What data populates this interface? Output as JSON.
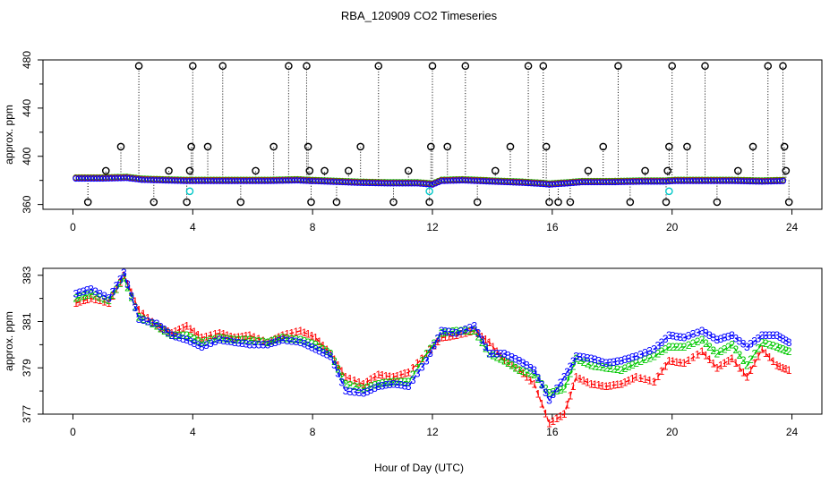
{
  "chart_data": {
    "title": "RBA_120909  CO2 Timeseries",
    "xlabel": "Hour of Day (UTC)",
    "x_ticks": [
      0,
      4,
      8,
      12,
      16,
      20,
      24
    ],
    "xlim": [
      -1,
      25
    ],
    "panels": [
      {
        "type": "scatter",
        "ylabel": "approx. ppm",
        "ylim": [
          356,
          480
        ],
        "y_ticks": [
          360,
          400,
          440,
          480
        ],
        "baseline": {
          "x": [
            0.1,
            1.0,
            1.8,
            2.3,
            3.0,
            3.8,
            4.5,
            5.5,
            6.5,
            7.5,
            7.9,
            8.5,
            9.5,
            10.5,
            11.5,
            12.0,
            12.3,
            13.0,
            14.0,
            15.0,
            15.7,
            15.9,
            16.5,
            17.0,
            18.0,
            19.0,
            19.8,
            20.1,
            21.0,
            22.0,
            23.0,
            23.8
          ],
          "y": [
            382,
            382,
            382.5,
            381,
            380.5,
            380,
            380,
            380,
            380,
            380.5,
            380,
            379.5,
            378.5,
            378,
            378,
            377,
            380,
            380.5,
            379.5,
            378.5,
            377.5,
            377,
            378,
            379,
            379,
            379.5,
            379.5,
            380,
            380,
            380,
            379.5,
            380
          ]
        },
        "series": [
          {
            "marker": "circle",
            "color": "#000000",
            "x": [
              0.5,
              1.1,
              1.6,
              2.2,
              2.7,
              3.2,
              3.8,
              3.9,
              3.95,
              4.0,
              4.5,
              5.0,
              5.6,
              6.1,
              6.7,
              7.2,
              7.8,
              7.85,
              7.9,
              7.95,
              8.4,
              8.8,
              9.2,
              9.6,
              10.2,
              10.7,
              11.2,
              11.9,
              11.95,
              12.0,
              12.5,
              13.1,
              13.5,
              14.1,
              14.6,
              15.2,
              15.7,
              15.8,
              15.9,
              16.2,
              16.6,
              17.2,
              17.7,
              18.2,
              18.6,
              19.1,
              19.8,
              19.85,
              19.9,
              20.0,
              20.5,
              21.1,
              21.5,
              22.2,
              22.7,
              23.2,
              23.7,
              23.75,
              23.8,
              23.9
            ],
            "y": [
              362,
              388,
              408,
              475,
              362,
              388,
              362,
              388,
              408,
              475,
              408,
              475,
              362,
              388,
              408,
              475,
              475,
              408,
              388,
              362,
              388,
              362,
              388,
              408,
              475,
              362,
              388,
              362,
              408,
              475,
              408,
              475,
              362,
              388,
              408,
              475,
              475,
              408,
              362,
              362,
              362,
              388,
              408,
              475,
              362,
              388,
              362,
              388,
              408,
              475,
              408,
              475,
              362,
              388,
              408,
              475,
              475,
              408,
              388,
              362
            ]
          },
          {
            "marker": "circle",
            "color": "#00c8c8",
            "x": [
              3.9,
              11.9,
              19.9
            ],
            "y": [
              371,
              371,
              371
            ]
          }
        ]
      },
      {
        "type": "scatter",
        "ylabel": "approx. ppm",
        "ylim": [
          377,
          383.3
        ],
        "y_ticks": [
          377,
          379,
          381,
          383
        ],
        "series": [
          {
            "marker_text": "1",
            "color": "#ff0000",
            "line": "dashed",
            "x": [
              0.1,
              0.6,
              1.2,
              1.7,
              2.2,
              2.8,
              3.3,
              3.8,
              4.3,
              4.9,
              5.4,
              5.9,
              6.5,
              7.0,
              7.6,
              8.1,
              8.6,
              9.1,
              9.7,
              10.2,
              10.7,
              11.2,
              11.8,
              12.3,
              12.8,
              13.4,
              13.9,
              14.4,
              14.9,
              15.4,
              15.9,
              16.4,
              16.8,
              17.3,
              17.8,
              18.3,
              18.8,
              19.4,
              19.9,
              20.4,
              21.0,
              21.5,
              22.0,
              22.5,
              23.0,
              23.5,
              23.9
            ],
            "y": [
              381.8,
              382,
              381.8,
              383,
              381.5,
              380.8,
              380.5,
              380.8,
              380.3,
              380.5,
              380.3,
              380.4,
              380.1,
              380.4,
              380.6,
              380.3,
              379.6,
              378.6,
              378.3,
              378.7,
              378.6,
              378.8,
              379.6,
              380.3,
              380.4,
              380.6,
              380.1,
              379.3,
              378.9,
              378.3,
              376.6,
              377.0,
              378.6,
              378.3,
              378.2,
              378.3,
              378.6,
              378.4,
              379.3,
              379.2,
              379.7,
              379.0,
              379.4,
              378.6,
              379.8,
              379.1,
              378.9
            ]
          },
          {
            "marker_text": "2",
            "color": "#00c800",
            "line": "dashed",
            "x": [
              0.1,
              0.6,
              1.2,
              1.7,
              2.2,
              2.8,
              3.3,
              3.8,
              4.3,
              4.9,
              5.4,
              5.9,
              6.5,
              7.0,
              7.6,
              8.1,
              8.6,
              9.1,
              9.7,
              10.2,
              10.7,
              11.2,
              11.8,
              12.3,
              12.8,
              13.4,
              13.9,
              14.4,
              14.9,
              15.4,
              15.9,
              16.4,
              16.8,
              17.3,
              17.8,
              18.3,
              18.8,
              19.4,
              19.9,
              20.4,
              21.0,
              21.5,
              22.0,
              22.5,
              23.0,
              23.5,
              23.9
            ],
            "y": [
              382.0,
              382.2,
              381.9,
              382.9,
              381.2,
              380.8,
              380.4,
              380.4,
              380.1,
              380.3,
              380.2,
              380.2,
              380.1,
              380.3,
              380.2,
              380.0,
              379.6,
              378.3,
              378.1,
              378.3,
              378.4,
              378.4,
              379.6,
              380.5,
              380.6,
              380.6,
              379.6,
              379.3,
              378.9,
              378.7,
              377.9,
              378.1,
              379.4,
              379.1,
              379.0,
              378.9,
              379.2,
              379.5,
              379.9,
              379.9,
              380.2,
              379.6,
              380.0,
              379.1,
              380.1,
              379.9,
              379.7
            ]
          },
          {
            "marker_text": "3",
            "color": "#0000ff",
            "line": "dashed",
            "x": [
              0.1,
              0.6,
              1.2,
              1.7,
              2.2,
              2.8,
              3.3,
              3.8,
              4.3,
              4.9,
              5.4,
              5.9,
              6.5,
              7.0,
              7.6,
              8.1,
              8.6,
              9.1,
              9.7,
              10.2,
              10.7,
              11.2,
              11.8,
              12.3,
              12.8,
              13.4,
              13.9,
              14.4,
              14.9,
              15.4,
              15.9,
              16.4,
              16.8,
              17.3,
              17.8,
              18.3,
              18.8,
              19.4,
              19.9,
              20.4,
              21.0,
              21.5,
              22.0,
              22.5,
              23.0,
              23.5,
              23.9
            ],
            "y": [
              382.2,
              382.4,
              382.0,
              383.1,
              381.1,
              380.9,
              380.4,
              380.2,
              379.9,
              380.2,
              380.1,
              380.0,
              380.0,
              380.2,
              380.1,
              379.8,
              379.5,
              378.0,
              377.9,
              378.2,
              378.3,
              378.2,
              379.3,
              380.6,
              380.5,
              380.8,
              379.6,
              379.6,
              379.3,
              378.9,
              377.6,
              378.6,
              379.5,
              379.4,
              379.2,
              379.3,
              379.5,
              379.8,
              380.4,
              380.3,
              380.6,
              380.2,
              380.4,
              379.9,
              380.4,
              380.4,
              380.1
            ]
          }
        ]
      }
    ]
  }
}
